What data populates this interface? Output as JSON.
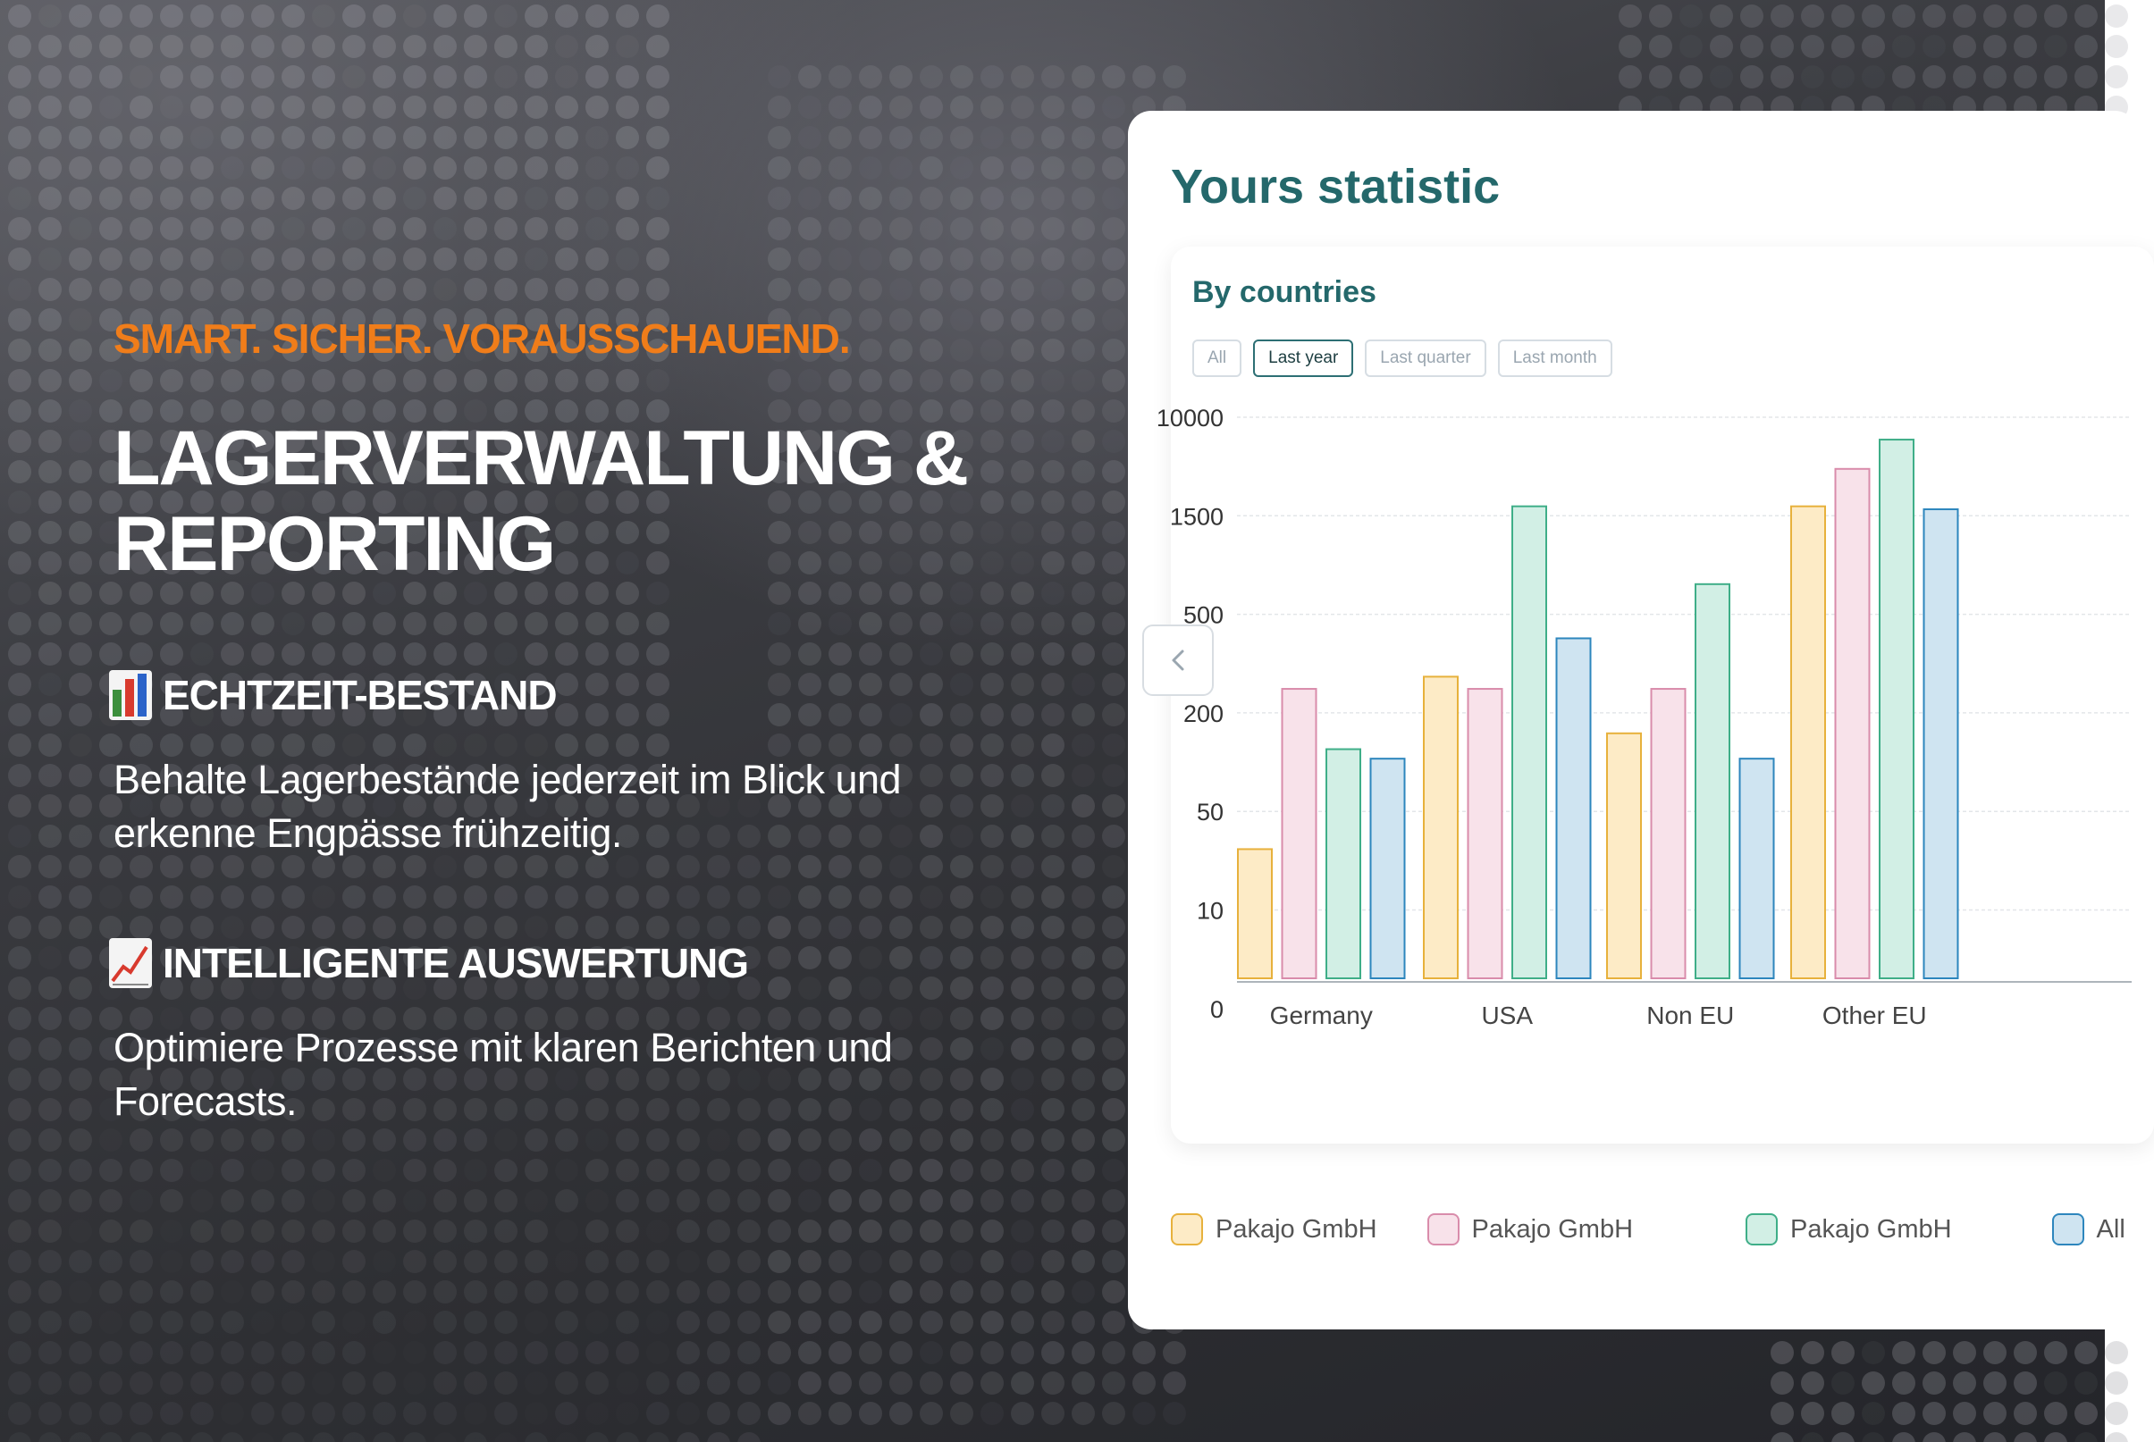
{
  "tagline": "SMART. SICHER. VORAUSSCHAUEND.",
  "headline": "LAGERVERWALTUNG & REPORTING",
  "features": [
    {
      "icon": "bar-chart-emoji-icon",
      "title": "ECHTZEIT-BESTAND",
      "text": "Behalte Lagerbestände jederzeit im Blick und erkenne Engpässe frühzeitig."
    },
    {
      "icon": "chart-increasing-emoji-icon",
      "title": "INTELLIGENTE AUSWERTUNG",
      "text": "Optimiere Prozesse mit klaren Berichten und Forecasts."
    }
  ],
  "card": {
    "title": "Yours statistic",
    "section_title": "By countries",
    "filters": [
      {
        "label": "All",
        "active": false
      },
      {
        "label": "Last year",
        "active": true
      },
      {
        "label": "Last quarter",
        "active": false
      },
      {
        "label": "Last month",
        "active": false
      }
    ],
    "nav_icon": "chevron-left-icon"
  },
  "colors": {
    "accent": "#f07d1a",
    "teal": "#24686b",
    "series": [
      {
        "fill": "#fdebc6",
        "stroke": "#e7b13c"
      },
      {
        "fill": "#f8e2ea",
        "stroke": "#d98cab"
      },
      {
        "fill": "#d2efe5",
        "stroke": "#3fae88"
      },
      {
        "fill": "#cfe4f1",
        "stroke": "#2d86bd"
      }
    ]
  },
  "chart_data": {
    "type": "bar",
    "y_ticks": [
      "10000",
      "1500",
      "500",
      "200",
      "50",
      "10",
      "0"
    ],
    "categories": [
      "Germany",
      "USA",
      "Non EU",
      "Other EU"
    ],
    "series": [
      {
        "name": "Pakajo GmbH",
        "values": [
          27,
          280,
          150,
          1800
        ]
      },
      {
        "name": "Pakajo GmbH",
        "values": [
          250,
          250,
          250,
          3700
        ]
      },
      {
        "name": "Pakajo GmbH",
        "values": [
          120,
          1800,
          700,
          6500
        ]
      },
      {
        "name": "All",
        "values": [
          105,
          400,
          105,
          1700
        ]
      }
    ],
    "legend_placement": "bottom",
    "grid": true
  }
}
